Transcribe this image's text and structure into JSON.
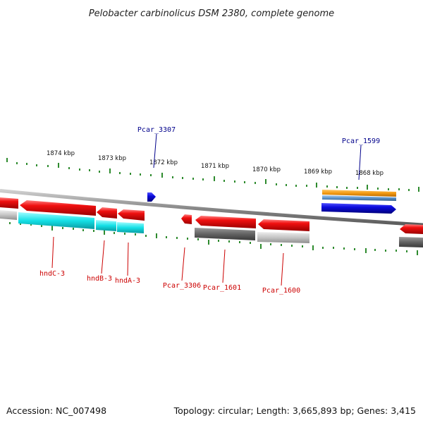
{
  "title": "Pelobacter carbinolicus DSM 2380, complete genome",
  "footer": {
    "accession": "Accession: NC_007498",
    "summary": "Topology: circular; Length: 3,665,893 bp; Genes: 3,415"
  },
  "colors": {
    "backbone": "#8c8c8c",
    "ticks": "#2e8b2e",
    "label_red": "#cc0000",
    "label_blue": "#00008b",
    "gene_red": "#e8141b",
    "gene_blue": "#1010e0",
    "gene_cyan": "#1fe0e8",
    "gene_orange": "#f39a12",
    "gene_steel": "#5b93c9",
    "gene_dark_gray": "#6a6a6a",
    "gene_light_gray": "#c0c0c0"
  },
  "scale": {
    "unit": "kbp",
    "ticks": [
      {
        "kbp": 1874,
        "label": "1874 kbp"
      },
      {
        "kbp": 1873,
        "label": "1873 kbp"
      },
      {
        "kbp": 1872,
        "label": "1872 kbp"
      },
      {
        "kbp": 1871,
        "label": "1871 kbp"
      },
      {
        "kbp": 1870,
        "label": "1870 kbp"
      },
      {
        "kbp": 1869,
        "label": "1869 kbp"
      },
      {
        "kbp": 1868,
        "label": "1868 kbp"
      }
    ]
  },
  "genes": [
    {
      "name": "hndC-3",
      "track": "red-lower",
      "color": "gene_red",
      "label": "hndC-3",
      "strand": "-"
    },
    {
      "name": "hndB-3",
      "track": "red-lower",
      "color": "gene_red",
      "label": "hndB-3",
      "strand": "-"
    },
    {
      "name": "hndA-3",
      "track": "red-lower",
      "color": "gene_red",
      "label": "hndA-3",
      "strand": "-"
    },
    {
      "name": "Pcar_3306",
      "track": "red-lower",
      "color": "gene_red",
      "label": "Pcar_3306",
      "strand": "-"
    },
    {
      "name": "Pcar_1601",
      "track": "red-lower",
      "color": "gene_red",
      "label": "Pcar_1601",
      "strand": "-"
    },
    {
      "name": "Pcar_1600",
      "track": "red-lower",
      "color": "gene_red",
      "label": "Pcar_1600",
      "strand": "-"
    },
    {
      "name": "Pcar_3307",
      "track": "blue-upper",
      "color": "gene_blue",
      "label": "Pcar_3307",
      "strand": "+"
    },
    {
      "name": "Pcar_1599",
      "track": "blue-upper",
      "color": "gene_blue",
      "label": "Pcar_1599",
      "strand": "+"
    }
  ]
}
